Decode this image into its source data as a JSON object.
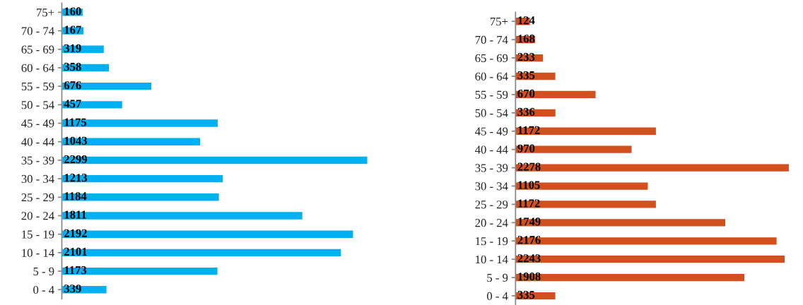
{
  "chart_data": [
    {
      "type": "bar",
      "orientation": "horizontal",
      "data_labels": true,
      "tick_labels": "y",
      "grid": false,
      "categories": [
        "75+",
        "70 - 74",
        "65 - 69",
        "60 - 64",
        "55 - 59",
        "50 - 54",
        "45 - 49",
        "40 - 44",
        "35 - 39",
        "30 - 34",
        "25 - 29",
        "20 - 24",
        "15 - 19",
        "10 - 14",
        "5 - 9",
        "0 - 4"
      ],
      "series": [
        {
          "color": "#00b0f0",
          "values": [
            160,
            167,
            319,
            358,
            676,
            457,
            1175,
            1043,
            2299,
            1213,
            1184,
            1811,
            2192,
            2101,
            1173,
            339
          ]
        }
      ]
    },
    {
      "type": "bar",
      "orientation": "horizontal",
      "data_labels": true,
      "tick_labels": "y",
      "grid": false,
      "categories": [
        "75+",
        "70 - 74",
        "65 - 69",
        "60 - 64",
        "55 - 59",
        "50 - 54",
        "45 - 49",
        "40 - 44",
        "35 - 39",
        "30 - 34",
        "25 - 29",
        "20 - 24",
        "15 - 19",
        "10 - 14",
        "5 - 9",
        "0 - 4"
      ],
      "series": [
        {
          "color": "#d24f1e",
          "values": [
            124,
            168,
            233,
            335,
            670,
            336,
            1172,
            970,
            2278,
            1105,
            1172,
            1749,
            2176,
            2243,
            1908,
            335
          ]
        }
      ]
    }
  ]
}
